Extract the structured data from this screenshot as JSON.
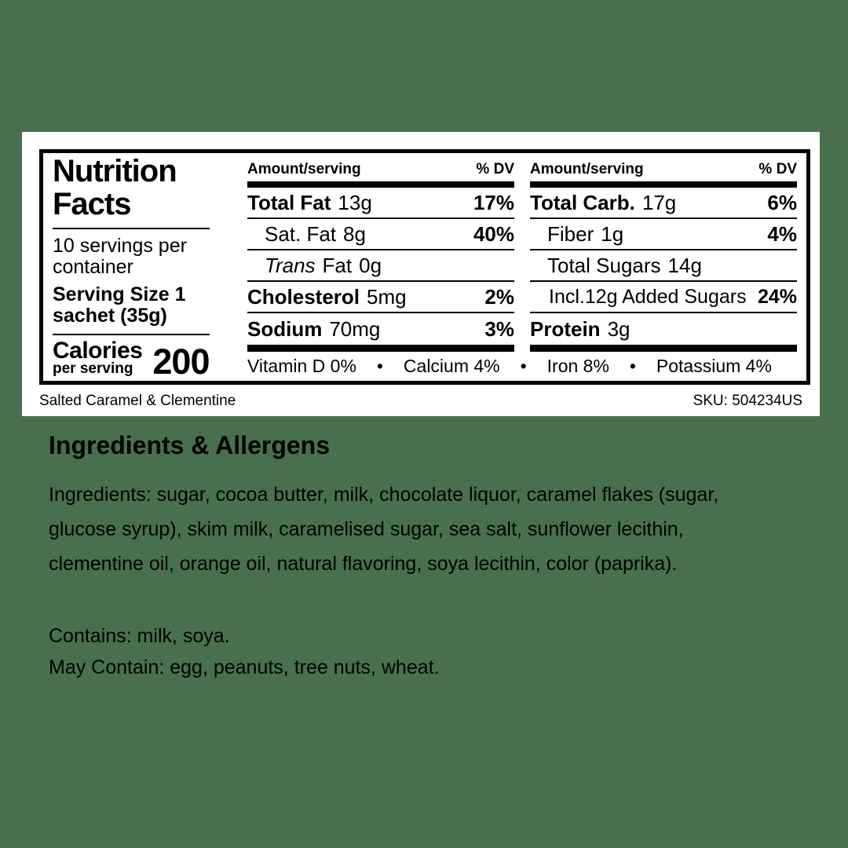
{
  "theme": {
    "background_color": "#48704E",
    "card_color": "#FFFFFF",
    "text_color": "#000000"
  },
  "label": {
    "title_line1": "Nutrition",
    "title_line2": "Facts",
    "servings_per_container": "10 servings per container",
    "serving_size": "Serving Size 1 sachet (35g)",
    "calories_word": "Calories",
    "calories_subword": "per serving",
    "calories_value": "200",
    "amount_header": "Amount/serving",
    "dv_header": "% DV",
    "bullet": "•",
    "fat_column_rows": [
      {
        "name": "Total Fat",
        "amount": "13g",
        "dv": "17%"
      },
      {
        "name": "Sat. Fat",
        "amount": "8g",
        "dv": "40%"
      },
      {
        "name": "Trans",
        "name_rest": "Fat",
        "amount": "0g",
        "dv": ""
      },
      {
        "name": "Cholesterol",
        "amount": "5mg",
        "dv": "2%"
      },
      {
        "name": "Sodium",
        "amount": "70mg",
        "dv": "3%"
      }
    ],
    "carb_column_rows": [
      {
        "name": "Total Carb.",
        "amount": "17g",
        "dv": "6%"
      },
      {
        "name": "Fiber",
        "amount": "1g",
        "dv": "4%"
      },
      {
        "name": "Total Sugars",
        "amount": "14g",
        "dv": ""
      },
      {
        "name": "Incl.12g Added Sugars",
        "amount": "",
        "dv": "24%"
      },
      {
        "name": "Protein",
        "amount": "3g",
        "dv": ""
      }
    ],
    "micronutrients": [
      "Vitamin D 0%",
      "Calcium 4%",
      "Iron 8%",
      "Potassium 4%"
    ],
    "flavor_name": "Salted Caramel & Clementine",
    "sku": "SKU: 504234US"
  },
  "ingredients": {
    "heading": "Ingredients & Allergens",
    "ingredients_paragraph": "Ingredients: sugar, cocoa butter, milk, chocolate liquor, caramel flakes (sugar, glucose syrup), skim milk, caramelised sugar, sea salt, sunflower lecithin, clementine oil, orange oil, natural flavoring, soya lecithin, color (paprika).",
    "contains_line": "Contains: milk, soya.",
    "may_contain_line": "May Contain: egg, peanuts, tree nuts, wheat."
  }
}
